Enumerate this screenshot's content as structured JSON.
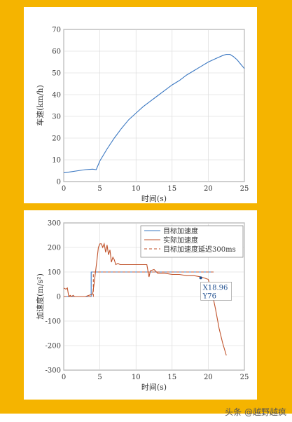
{
  "colors": {
    "frame": "#f5b400",
    "speed_line": "#3b78c2",
    "target": "#3b78c2",
    "actual": "#c0522a",
    "delayed": "#c0522a",
    "annotation": "#1f4f8f"
  },
  "chart_data": [
    {
      "type": "line",
      "xlabel": "时间(s)",
      "ylabel": "车速(km/h)",
      "xlim": [
        0,
        25
      ],
      "ylim": [
        0,
        70
      ],
      "xticks": [
        0,
        5,
        10,
        15,
        20,
        25
      ],
      "yticks": [
        0,
        10,
        20,
        30,
        40,
        50,
        60,
        70
      ],
      "grid": true,
      "series": [
        {
          "x": [
            0,
            1,
            2,
            3,
            4,
            4.5,
            5,
            6,
            7,
            8,
            9,
            10,
            11,
            12,
            13,
            14,
            15,
            16,
            17,
            18,
            19,
            20,
            21,
            22,
            22.5,
            23,
            23.5,
            24,
            24.5,
            25
          ],
          "values": [
            4,
            4.5,
            5,
            5.5,
            5.7,
            5.5,
            9.5,
            15,
            20,
            24.5,
            28.5,
            31.5,
            34.5,
            37,
            39.5,
            42,
            44.5,
            46.5,
            49,
            51,
            53,
            55,
            56.5,
            58,
            58.5,
            58.5,
            57.5,
            56,
            54,
            52
          ]
        }
      ]
    },
    {
      "type": "line",
      "xlabel": "时间(s)",
      "ylabel": "加速度(m/s²)",
      "xlim": [
        0,
        25
      ],
      "ylim": [
        -300,
        300
      ],
      "xticks": [
        0,
        5,
        10,
        15,
        20,
        25
      ],
      "yticks": [
        -300,
        -200,
        -100,
        0,
        100,
        200,
        300
      ],
      "grid": true,
      "legend_position": "top-right",
      "annotation": {
        "x_label": "X18.96",
        "y_label": "Y76",
        "x": 18.96,
        "y": 76
      },
      "series": [
        {
          "name": "目标加速度",
          "style": "solid",
          "x": [
            0,
            3.8,
            3.8,
            20.5
          ],
          "values": [
            0,
            0,
            100,
            100
          ]
        },
        {
          "name": "实际加速度",
          "style": "solid",
          "x": [
            0,
            0.3,
            0.5,
            0.7,
            0.9,
            1.1,
            1.3,
            1.5,
            2,
            3,
            4,
            4.2,
            4.4,
            4.6,
            4.8,
            5,
            5.2,
            5.4,
            5.6,
            5.8,
            6,
            6.2,
            6.4,
            6.6,
            6.8,
            7,
            7.2,
            7.5,
            7.8,
            8,
            8.5,
            9,
            10,
            11,
            11.5,
            11.8,
            12,
            12.5,
            13,
            13.5,
            14,
            15,
            16,
            17,
            18,
            19,
            20,
            20.5,
            21,
            21.5,
            22,
            22.5
          ],
          "values": [
            35,
            30,
            35,
            0,
            5,
            0,
            5,
            0,
            0,
            0,
            10,
            50,
            100,
            150,
            200,
            215,
            215,
            200,
            215,
            180,
            210,
            170,
            190,
            140,
            160,
            150,
            130,
            135,
            130,
            130,
            130,
            130,
            130,
            130,
            130,
            80,
            105,
            110,
            95,
            95,
            95,
            90,
            90,
            85,
            85,
            80,
            70,
            20,
            -50,
            -130,
            -190,
            -240
          ]
        },
        {
          "name": "目标加速度延迟300ms",
          "style": "dashed",
          "x": [
            0,
            4.1,
            4.1,
            20.8
          ],
          "values": [
            0,
            0,
            100,
            100
          ]
        }
      ]
    }
  ],
  "watermark": "头条 @越野越疯"
}
